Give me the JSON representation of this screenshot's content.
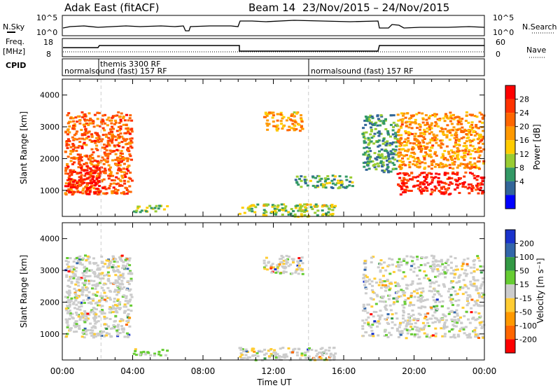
{
  "header": {
    "station": "Adak East (fitACF)",
    "beam": "Beam 14",
    "date_range": "23/Nov/2015 – 24/Nov/2015"
  },
  "top_panel": {
    "left_label": "N.Sky",
    "right_label": "N.Search",
    "left_ticks": [
      "10^5",
      "10^0"
    ],
    "right_ticks": [
      "10^5",
      "10^0"
    ]
  },
  "freq_panel": {
    "left_label_line1": "Freq.",
    "left_label_line2": "[MHz]",
    "right_label": "Nave",
    "left_ticks": [
      "18",
      "8"
    ],
    "right_ticks": [
      "60",
      "0"
    ]
  },
  "cpid": {
    "label": "CPID",
    "segments": [
      {
        "name": "normalsound (fast) 157 RF",
        "start_hour": 0
      },
      {
        "name": "themis 3300 RF",
        "start_hour": 2.2
      },
      {
        "name": "normalsound (fast) 157 RF",
        "start_hour": 14
      }
    ]
  },
  "power_colorbar": {
    "label": "Power [dB]",
    "ticks": [
      "28",
      "24",
      "20",
      "16",
      "12",
      "8",
      "4"
    ],
    "colors": [
      "#ff0000",
      "#ff3300",
      "#ff6600",
      "#ff9900",
      "#ffcc00",
      "#99cc33",
      "#339966",
      "#336699",
      "#0000ff"
    ]
  },
  "velocity_colorbar": {
    "label": "Velocity [m s⁻¹]",
    "ticks": [
      "200",
      "100",
      "50",
      "15",
      "-15",
      "-50",
      "-100",
      "-200"
    ],
    "colors": [
      "#1a33cc",
      "#3366aa",
      "#339944",
      "#66cc33",
      "#cccccc",
      "#ffcc33",
      "#ff9900",
      "#ff6600",
      "#ff0000"
    ]
  },
  "chart_data": {
    "type": "heatmap",
    "xlabel": "Time UT",
    "x_ticks": [
      "00:00",
      "04:00",
      "08:00",
      "12:00",
      "16:00",
      "20:00",
      "00:00"
    ],
    "xlim_hours": [
      0,
      24
    ],
    "ylabel": "Slant Range [km]",
    "y_ticks": [
      1000,
      2000,
      3000,
      4000
    ],
    "ylim_km": [
      180,
      4500
    ],
    "panels": [
      {
        "name": "Power",
        "regions": [
          {
            "t0": 0.1,
            "t1": 3.9,
            "r0": 900,
            "r1": 3500,
            "level": 0.78
          },
          {
            "t0": 0.2,
            "t1": 2.3,
            "r0": 900,
            "r1": 1800,
            "level": 0.95
          },
          {
            "t0": 4.0,
            "t1": 6.0,
            "r0": 350,
            "r1": 550,
            "level": 0.35
          },
          {
            "t0": 11.4,
            "t1": 13.6,
            "r0": 2900,
            "r1": 3500,
            "level": 0.6
          },
          {
            "t0": 10.0,
            "t1": 15.5,
            "r0": 200,
            "r1": 600,
            "level": 0.4
          },
          {
            "t0": 13.2,
            "t1": 16.5,
            "r0": 1100,
            "r1": 1500,
            "level": 0.3
          },
          {
            "t0": 17.0,
            "t1": 19.0,
            "r0": 1600,
            "r1": 3400,
            "level": 0.25
          },
          {
            "t0": 19.0,
            "t1": 23.9,
            "r0": 1700,
            "r1": 3500,
            "level": 0.65
          },
          {
            "t0": 19.0,
            "t1": 23.9,
            "r0": 900,
            "r1": 1600,
            "level": 0.95
          }
        ]
      },
      {
        "name": "Velocity",
        "regions": [
          {
            "t0": 0.1,
            "t1": 3.9,
            "r0": 900,
            "r1": 3500,
            "level": 0.5
          },
          {
            "t0": 4.0,
            "t1": 6.0,
            "r0": 350,
            "r1": 550,
            "level": 0.8
          },
          {
            "t0": 11.4,
            "t1": 13.6,
            "r0": 2900,
            "r1": 3500,
            "level": 0.45
          },
          {
            "t0": 10.0,
            "t1": 15.5,
            "r0": 200,
            "r1": 600,
            "level": 0.55
          },
          {
            "t0": 17.0,
            "t1": 23.9,
            "r0": 900,
            "r1": 3500,
            "level": 0.5
          }
        ]
      }
    ]
  }
}
